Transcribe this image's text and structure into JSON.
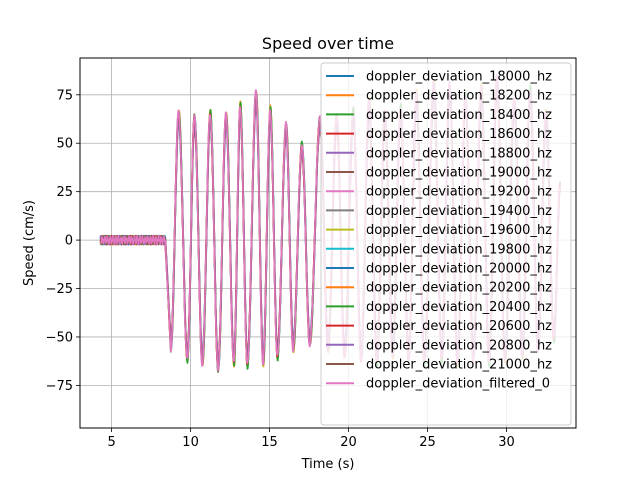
{
  "chart_data": {
    "type": "line",
    "title": "Speed over time",
    "xlabel": "Time (s)",
    "ylabel": "Speed (cm/s)",
    "xlim": [
      3.0,
      34.4
    ],
    "ylim": [
      -97,
      94
    ],
    "x_ticks": [
      5,
      10,
      15,
      20,
      25,
      30
    ],
    "x_tick_labels": [
      "5",
      "10",
      "15",
      "20",
      "25",
      "30"
    ],
    "y_ticks": [
      -75,
      -50,
      -25,
      0,
      25,
      50,
      75
    ],
    "y_tick_labels": [
      "−75",
      "−50",
      "−25",
      "0",
      "25",
      "50",
      "75"
    ],
    "grid": true,
    "legend_position": "upper right",
    "series": [
      {
        "name": "doppler_deviation_18000_hz",
        "color": "#1f77b4"
      },
      {
        "name": "doppler_deviation_18200_hz",
        "color": "#ff7f0e"
      },
      {
        "name": "doppler_deviation_18400_hz",
        "color": "#2ca02c"
      },
      {
        "name": "doppler_deviation_18600_hz",
        "color": "#d62728"
      },
      {
        "name": "doppler_deviation_18800_hz",
        "color": "#9467bd"
      },
      {
        "name": "doppler_deviation_19000_hz",
        "color": "#8c564b"
      },
      {
        "name": "doppler_deviation_19200_hz",
        "color": "#e377c2"
      },
      {
        "name": "doppler_deviation_19400_hz",
        "color": "#7f7f7f"
      },
      {
        "name": "doppler_deviation_19600_hz",
        "color": "#bcbd22"
      },
      {
        "name": "doppler_deviation_19800_hz",
        "color": "#17becf"
      },
      {
        "name": "doppler_deviation_20000_hz",
        "color": "#1f77b4"
      },
      {
        "name": "doppler_deviation_20200_hz",
        "color": "#ff7f0e"
      },
      {
        "name": "doppler_deviation_20400_hz",
        "color": "#2ca02c"
      },
      {
        "name": "doppler_deviation_20600_hz",
        "color": "#d62728"
      },
      {
        "name": "doppler_deviation_20800_hz",
        "color": "#9467bd"
      },
      {
        "name": "doppler_deviation_21000_hz",
        "color": "#8c564b"
      },
      {
        "name": "doppler_deviation_filtered_0",
        "color": "#e377c2"
      }
    ],
    "signal": {
      "baseline_start": 4.3,
      "baseline_end": 8.4,
      "peaks": [
        [
          8.75,
          -55
        ],
        [
          9.25,
          64
        ],
        [
          9.8,
          -60
        ],
        [
          10.25,
          62
        ],
        [
          10.75,
          -62
        ],
        [
          11.25,
          64
        ],
        [
          11.75,
          -65
        ],
        [
          12.25,
          63
        ],
        [
          12.75,
          -62
        ],
        [
          13.15,
          68
        ],
        [
          13.6,
          -63
        ],
        [
          14.15,
          74
        ],
        [
          14.6,
          -62
        ],
        [
          15.05,
          66
        ],
        [
          15.5,
          -59
        ],
        [
          16.05,
          58
        ],
        [
          16.5,
          -55
        ],
        [
          17.05,
          48
        ],
        [
          17.55,
          -52
        ],
        [
          18.2,
          61
        ],
        [
          18.7,
          -55
        ],
        [
          19.25,
          62
        ],
        [
          19.75,
          -58
        ],
        [
          20.3,
          65
        ],
        [
          20.8,
          -60
        ],
        [
          21.3,
          70
        ],
        [
          21.8,
          -62
        ],
        [
          22.3,
          64
        ],
        [
          22.8,
          -58
        ],
        [
          23.3,
          67
        ],
        [
          23.8,
          -60
        ],
        [
          24.3,
          74
        ],
        [
          24.8,
          -62
        ],
        [
          25.4,
          79
        ],
        [
          25.9,
          -60
        ],
        [
          26.4,
          78
        ],
        [
          26.9,
          -62
        ],
        [
          27.4,
          73
        ],
        [
          27.9,
          -60
        ],
        [
          28.4,
          77
        ],
        [
          28.9,
          -62
        ],
        [
          29.4,
          82
        ],
        [
          29.9,
          -60
        ],
        [
          30.5,
          70
        ],
        [
          31.0,
          -58
        ],
        [
          31.5,
          76
        ],
        [
          32.0,
          -55
        ],
        [
          32.5,
          64
        ],
        [
          33.0,
          -50
        ],
        [
          33.4,
          28
        ]
      ]
    }
  }
}
